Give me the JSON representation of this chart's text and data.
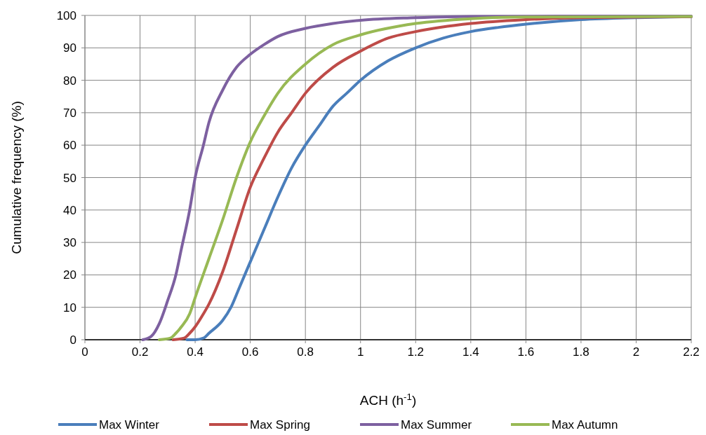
{
  "chart_data": {
    "type": "line",
    "xlabel": "ACH (h$^{-1}$)",
    "ylabel": "Cumulative frequency (%)",
    "xlim": [
      0,
      2.2
    ],
    "xticks": [
      0,
      {
        "value": 0.2,
        "label": "0.2"
      },
      {
        "value": 0.4,
        "label": "0.4"
      },
      {
        "value": 0.6,
        "label": "0.6"
      },
      {
        "value": 0.8,
        "label": "0.8"
      },
      1,
      {
        "value": 1.2,
        "label": "1.2"
      },
      {
        "value": 1.4,
        "label": "1.4"
      },
      {
        "value": 1.6,
        "label": "1.6"
      },
      {
        "value": 1.8,
        "label": "1.8"
      },
      2,
      {
        "value": 2.2,
        "label": "2.2"
      }
    ],
    "ylim": [
      0,
      100
    ],
    "yticks": [
      0,
      10,
      20,
      30,
      40,
      50,
      60,
      70,
      80,
      90,
      100
    ],
    "grid": true,
    "legend": "bottom",
    "marker": "none",
    "line_style": "solid",
    "series": [
      {
        "name": "Max Winter",
        "color": "#4a7ebb",
        "x": [
          0.37,
          0.4,
          0.43,
          0.45,
          0.5,
          0.53,
          0.56,
          0.6,
          0.65,
          0.7,
          0.75,
          0.8,
          0.85,
          0.9,
          0.95,
          1.0,
          1.1,
          1.2,
          1.3,
          1.4,
          1.5,
          1.6,
          1.8,
          2.0,
          2.2
        ],
        "values": [
          0,
          0,
          0.5,
          2,
          6,
          10,
          16,
          24,
          34,
          44,
          53,
          60,
          66,
          72,
          76,
          80,
          86,
          90,
          93,
          95,
          96.3,
          97.3,
          98.7,
          99.3,
          99.6
        ]
      },
      {
        "name": "Max Spring",
        "color": "#be4b48",
        "x": [
          0.32,
          0.36,
          0.38,
          0.4,
          0.43,
          0.45,
          0.5,
          0.55,
          0.6,
          0.65,
          0.7,
          0.75,
          0.8,
          0.9,
          1.0,
          1.1,
          1.2,
          1.4,
          1.6,
          1.8,
          2.2
        ],
        "values": [
          0,
          0.5,
          2,
          4,
          8,
          11,
          21,
          34,
          47,
          56,
          64,
          70,
          76,
          84,
          89,
          93,
          95,
          97.5,
          98.7,
          99.3,
          99.6
        ]
      },
      {
        "name": "Max Summer",
        "color": "#7d60a0",
        "x": [
          0.21,
          0.24,
          0.27,
          0.3,
          0.33,
          0.35,
          0.38,
          0.4,
          0.43,
          0.45,
          0.5,
          0.55,
          0.6,
          0.65,
          0.7,
          0.8,
          0.9,
          1.0,
          1.2,
          1.4,
          2.2
        ],
        "values": [
          0,
          1,
          5,
          12,
          20,
          28,
          40,
          50,
          60,
          67,
          77,
          84,
          88,
          91,
          93.5,
          96,
          97.5,
          98.5,
          99.3,
          99.7,
          99.8
        ]
      },
      {
        "name": "Max Autumn",
        "color": "#98b954",
        "x": [
          0.27,
          0.31,
          0.33,
          0.35,
          0.38,
          0.4,
          0.45,
          0.5,
          0.55,
          0.6,
          0.65,
          0.7,
          0.8,
          0.9,
          1.0,
          1.2,
          1.4,
          1.6,
          2.2
        ],
        "values": [
          0,
          0.5,
          2,
          4,
          8,
          13,
          25,
          37,
          50,
          61,
          69,
          76,
          85,
          91,
          94,
          97.5,
          99,
          99.5,
          99.7
        ]
      }
    ]
  }
}
